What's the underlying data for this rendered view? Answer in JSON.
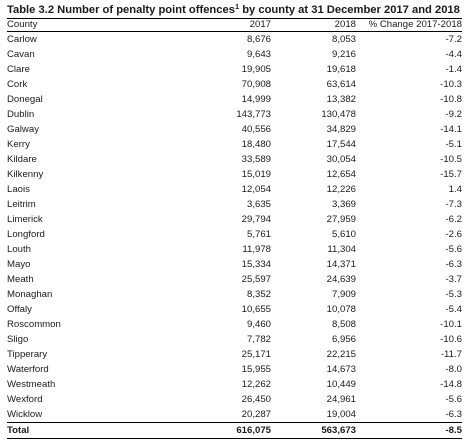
{
  "title_main": "Table 3.2 Number of penalty point offences",
  "title_sup": "1",
  "title_rest": " by county at 31 December 2017 and 2018",
  "columns": [
    "County",
    "2017",
    "2018",
    "% Change 2017-2018"
  ],
  "rows": [
    [
      "Carlow",
      "8,676",
      "8,053",
      "-7.2"
    ],
    [
      "Cavan",
      "9,643",
      "9,216",
      "-4.4"
    ],
    [
      "Clare",
      "19,905",
      "19,618",
      "-1.4"
    ],
    [
      "Cork",
      "70,908",
      "63,614",
      "-10.3"
    ],
    [
      "Donegal",
      "14,999",
      "13,382",
      "-10.8"
    ],
    [
      "Dublin",
      "143,773",
      "130,478",
      "-9.2"
    ],
    [
      "Galway",
      "40,556",
      "34,829",
      "-14.1"
    ],
    [
      "Kerry",
      "18,480",
      "17,544",
      "-5.1"
    ],
    [
      "Kildare",
      "33,589",
      "30,054",
      "-10.5"
    ],
    [
      "Kilkenny",
      "15,019",
      "12,654",
      "-15.7"
    ],
    [
      "Laois",
      "12,054",
      "12,226",
      "1.4"
    ],
    [
      "Leitrim",
      "3,635",
      "3,369",
      "-7.3"
    ],
    [
      "Limerick",
      "29,794",
      "27,959",
      "-6.2"
    ],
    [
      "Longford",
      "5,761",
      "5,610",
      "-2.6"
    ],
    [
      "Louth",
      "11,978",
      "11,304",
      "-5.6"
    ],
    [
      "Mayo",
      "15,334",
      "14,371",
      "-6.3"
    ],
    [
      "Meath",
      "25,597",
      "24,639",
      "-3.7"
    ],
    [
      "Monaghan",
      "8,352",
      "7,909",
      "-5.3"
    ],
    [
      "Offaly",
      "10,655",
      "10,078",
      "-5.4"
    ],
    [
      "Roscommon",
      "9,460",
      "8,508",
      "-10.1"
    ],
    [
      "Sligo",
      "7,782",
      "6,956",
      "-10.6"
    ],
    [
      "Tipperary",
      "25,171",
      "22,215",
      "-11.7"
    ],
    [
      "Waterford",
      "15,955",
      "14,673",
      "-8.0"
    ],
    [
      "Westmeath",
      "12,262",
      "10,449",
      "-14.8"
    ],
    [
      "Wexford",
      "26,450",
      "24,961",
      "-5.6"
    ],
    [
      "Wicklow",
      "20,287",
      "19,004",
      "-6.3"
    ]
  ],
  "total": [
    "Total",
    "616,075",
    "563,673",
    "-8.5"
  ]
}
